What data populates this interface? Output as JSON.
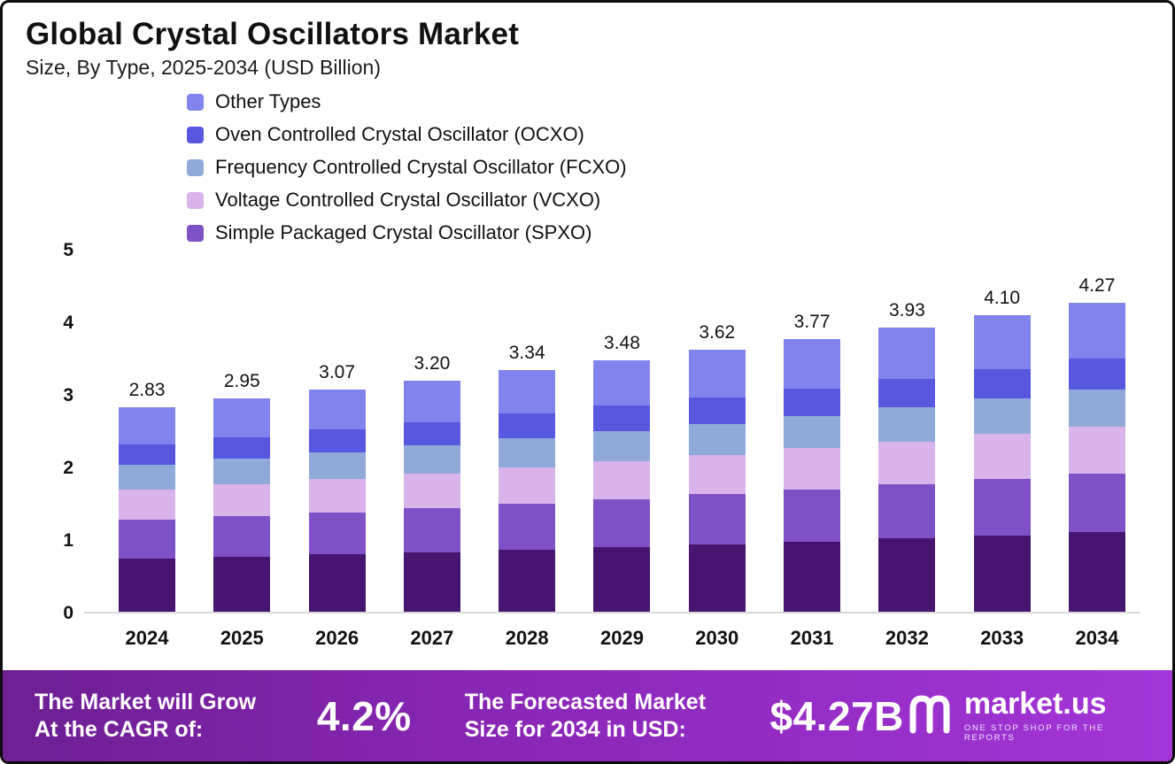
{
  "header": {
    "title": "Global Crystal Oscillators Market",
    "subtitle": "Size, By Type, 2025-2034 (USD Billion)"
  },
  "chart_data": {
    "type": "bar",
    "stacked": true,
    "title": "Global Crystal Oscillators Market",
    "subtitle": "Size, By Type, 2025-2034 (USD Billion)",
    "unit": "USD Billion",
    "categories": [
      "2024",
      "2025",
      "2026",
      "2027",
      "2028",
      "2029",
      "2030",
      "2031",
      "2032",
      "2033",
      "2034"
    ],
    "totals": [
      2.83,
      2.95,
      3.07,
      3.2,
      3.34,
      3.48,
      3.62,
      3.77,
      3.93,
      4.1,
      4.27
    ],
    "yticks": [
      0,
      1,
      2,
      3,
      4,
      5
    ],
    "ylim": [
      0,
      5
    ],
    "grid": false,
    "legend_position": "top-left",
    "legend": [
      {
        "label": "Other Types",
        "color": "#8284EE"
      },
      {
        "label": "Oven Controlled Crystal Oscillator (OCXO)",
        "color": "#5857E0"
      },
      {
        "label": "Frequency Controlled Crystal Oscillator (FCXO)",
        "color": "#8FA9D9"
      },
      {
        "label": "Voltage Controlled Crystal Oscillator (VCXO)",
        "color": "#D9B3EA"
      },
      {
        "label": "Simple Packaged Crystal Oscillator (SPXO)",
        "color": "#7E52C6"
      }
    ],
    "series_bottom_to_top": [
      {
        "name": "Unlabeled base segment (dark purple, no legend entry)",
        "color": "#471470",
        "values": [
          0.74,
          0.77,
          0.8,
          0.83,
          0.87,
          0.9,
          0.94,
          0.98,
          1.02,
          1.06,
          1.11
        ]
      },
      {
        "name": "Simple Packaged Crystal Oscillator (SPXO)",
        "color": "#7E52C6",
        "values": [
          0.54,
          0.56,
          0.58,
          0.61,
          0.63,
          0.66,
          0.69,
          0.72,
          0.75,
          0.78,
          0.81
        ]
      },
      {
        "name": "Voltage Controlled Crystal Oscillator (VCXO)",
        "color": "#D9B3EA",
        "values": [
          0.42,
          0.44,
          0.46,
          0.48,
          0.5,
          0.52,
          0.54,
          0.57,
          0.59,
          0.62,
          0.64
        ]
      },
      {
        "name": "Frequency Controlled Crystal Oscillator (FCXO)",
        "color": "#8FA9D9",
        "values": [
          0.34,
          0.35,
          0.37,
          0.38,
          0.4,
          0.42,
          0.43,
          0.44,
          0.47,
          0.49,
          0.51
        ]
      },
      {
        "name": "Oven Controlled Crystal Oscillator (OCXO)",
        "color": "#5857E0",
        "values": [
          0.28,
          0.3,
          0.31,
          0.32,
          0.34,
          0.35,
          0.36,
          0.38,
          0.39,
          0.41,
          0.43
        ]
      },
      {
        "name": "Other Types",
        "color": "#8284EE",
        "values": [
          0.51,
          0.53,
          0.55,
          0.58,
          0.6,
          0.63,
          0.66,
          0.68,
          0.71,
          0.74,
          0.77
        ]
      }
    ]
  },
  "banner": {
    "left_label": "The Market will Grow At the CAGR of:",
    "cagr": "4.2%",
    "mid_label": "The Forecasted Market Size for 2034 in USD:",
    "forecast_size": "$4.27B",
    "brand_name": "market.us",
    "brand_tagline": "ONE STOP SHOP FOR THE REPORTS"
  },
  "colors": {
    "banner_gradient_start": "#6d1f92",
    "banner_gradient_end": "#a435d8",
    "page_border": "#0d0d0d",
    "axis_line": "#d8d8d8"
  }
}
